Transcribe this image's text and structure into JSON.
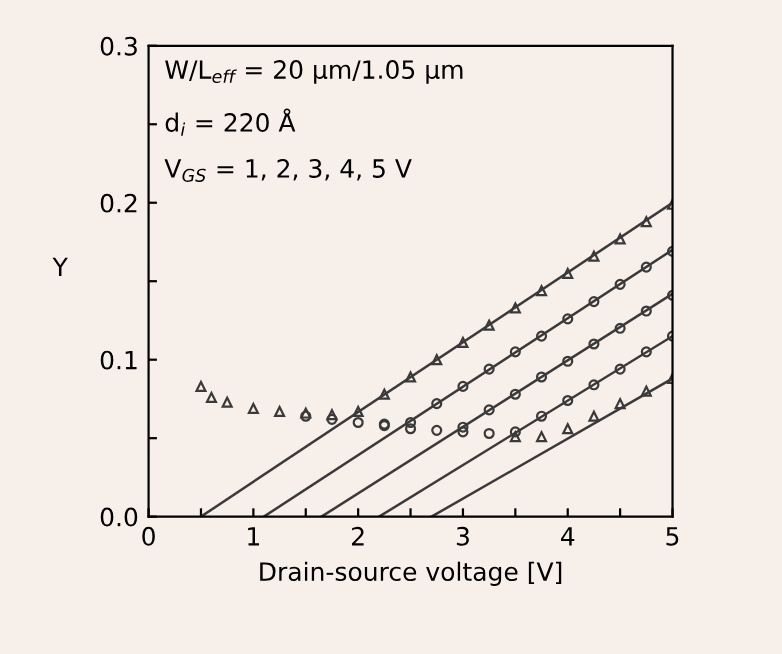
{
  "chart_data": {
    "type": "scatter",
    "xlabel": "Drain-source voltage [V]",
    "ylabel": "Y",
    "xlim": [
      0,
      5
    ],
    "ylim": [
      0,
      0.3
    ],
    "xticks": [
      0,
      {
        "value": 0.5,
        "label": null
      },
      1,
      {
        "value": 1.5,
        "label": null
      },
      2,
      {
        "value": 2.5,
        "label": null
      },
      3,
      {
        "value": 3.5,
        "label": null
      },
      4,
      {
        "value": 4.5,
        "label": null
      },
      5
    ],
    "yticks": [
      {
        "value": 0,
        "label": "0.0"
      },
      {
        "value": 0.05,
        "label": null
      },
      {
        "value": 0.1,
        "label": "0.1"
      },
      {
        "value": 0.15,
        "label": null
      },
      {
        "value": 0.2,
        "label": "0.2"
      },
      {
        "value": 0.25,
        "label": null
      },
      {
        "value": 0.3,
        "label": "0.3"
      }
    ],
    "grid": false,
    "annotations": [
      "W/L$_{eff}$ = 20 μm/1.05 μm",
      "d$_{i}$ = 220 Å",
      "V$_{GS}$ = 1, 2, 3, 4, 5 V"
    ],
    "series": [
      {
        "marker": "triangle",
        "color": "#3a3a3a",
        "x": [
          0.5,
          0.6,
          0.75,
          1.0,
          1.25,
          1.5,
          1.75,
          2.0,
          2.25,
          2.5,
          2.75,
          3.0,
          3.25,
          3.5,
          3.75,
          4.0,
          4.25,
          4.5,
          4.75,
          5.0
        ],
        "values": [
          0.083,
          0.076,
          0.073,
          0.069,
          0.067,
          0.066,
          0.065,
          0.067,
          0.078,
          0.089,
          0.1,
          0.111,
          0.122,
          0.133,
          0.144,
          0.155,
          0.166,
          0.177,
          0.188,
          0.199
        ]
      },
      {
        "marker": "circle",
        "color": "#3a3a3a",
        "x": [
          1.5,
          1.75,
          2.0,
          2.25,
          2.5,
          2.75,
          3.0,
          3.25,
          3.5,
          3.75,
          4.0,
          4.25,
          4.5,
          4.75,
          5.0
        ],
        "values": [
          0.064,
          0.062,
          0.06,
          0.059,
          0.06,
          0.072,
          0.083,
          0.094,
          0.105,
          0.115,
          0.126,
          0.137,
          0.148,
          0.159,
          0.169
        ]
      },
      {
        "marker": "circle",
        "color": "#3a3a3a",
        "x": [
          2.25,
          2.5,
          2.75,
          3.0,
          3.25,
          3.5,
          3.75,
          4.0,
          4.25,
          4.5,
          4.75,
          5.0
        ],
        "values": [
          0.058,
          0.056,
          0.055,
          0.057,
          0.068,
          0.078,
          0.089,
          0.099,
          0.11,
          0.12,
          0.131,
          0.141
        ]
      },
      {
        "marker": "circle",
        "color": "#3a3a3a",
        "x": [
          3.0,
          3.25,
          3.5,
          3.75,
          4.0,
          4.25,
          4.5,
          4.75,
          5.0
        ],
        "values": [
          0.054,
          0.053,
          0.054,
          0.064,
          0.074,
          0.084,
          0.094,
          0.105,
          0.115
        ]
      },
      {
        "marker": "triangle",
        "color": "#3a3a3a",
        "x": [
          3.5,
          3.75,
          4.0,
          4.25,
          4.5,
          4.75,
          5.0
        ],
        "values": [
          0.051,
          0.051,
          0.056,
          0.064,
          0.072,
          0.08,
          0.088
        ]
      },
      {
        "type": "line",
        "color": "#3a3a3a",
        "x": [
          0.5,
          5
        ],
        "values": [
          0,
          0.2
        ]
      },
      {
        "type": "line",
        "color": "#3a3a3a",
        "x": [
          1.1,
          5
        ],
        "values": [
          0,
          0.17
        ]
      },
      {
        "type": "line",
        "color": "#3a3a3a",
        "x": [
          1.65,
          5
        ],
        "values": [
          0,
          0.142
        ]
      },
      {
        "type": "line",
        "color": "#3a3a3a",
        "x": [
          2.2,
          5
        ],
        "values": [
          0,
          0.115
        ]
      },
      {
        "type": "line",
        "color": "#3a3a3a",
        "x": [
          2.7,
          5
        ],
        "values": [
          0,
          0.088
        ]
      }
    ]
  }
}
